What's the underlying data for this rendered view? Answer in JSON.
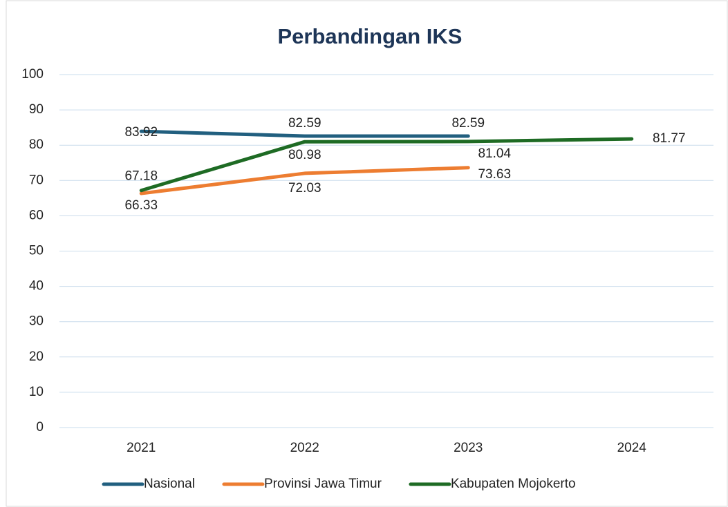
{
  "chart_data": {
    "type": "line",
    "title": "Perbandingan IKS",
    "categories": [
      "2021",
      "2022",
      "2023",
      "2024"
    ],
    "series": [
      {
        "name": "Nasional",
        "color": "#215f7f",
        "values": [
          83.92,
          82.59,
          82.59,
          null
        ]
      },
      {
        "name": "Provinsi Jawa Timur",
        "color": "#ed7d31",
        "values": [
          66.33,
          72.03,
          73.63,
          null
        ]
      },
      {
        "name": "Kabupaten Mojokerto",
        "color": "#1e6b24",
        "values": [
          67.18,
          80.98,
          81.04,
          81.77
        ]
      }
    ],
    "ylim": [
      0,
      100
    ],
    "yticks": [
      0,
      10,
      20,
      30,
      40,
      50,
      60,
      70,
      80,
      90,
      100
    ],
    "grid": true,
    "legend": "bottom"
  }
}
